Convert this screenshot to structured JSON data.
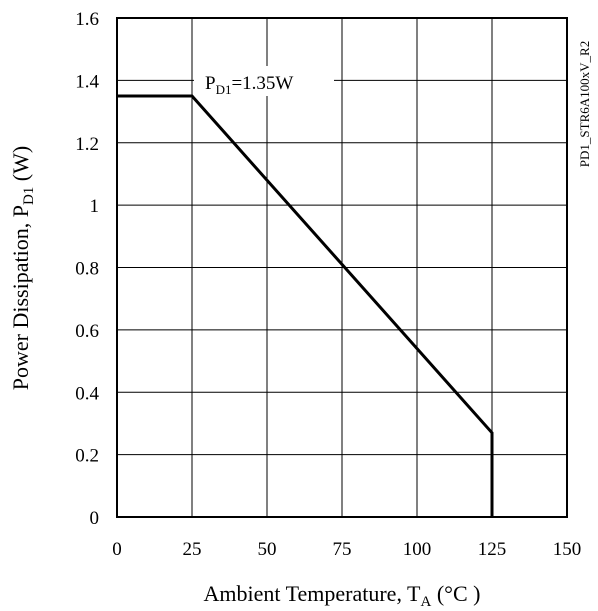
{
  "chart_data": {
    "type": "line",
    "x": [
      0,
      25,
      125,
      125
    ],
    "y": [
      1.35,
      1.35,
      0.27,
      0
    ],
    "xlim": [
      0,
      150
    ],
    "ylim": [
      0,
      1.6
    ],
    "x_ticks": [
      0,
      25,
      50,
      75,
      100,
      125,
      150
    ],
    "y_ticks": [
      0,
      0.2,
      0.4,
      0.6,
      0.8,
      1,
      1.2,
      1.4,
      1.6
    ],
    "x_tick_labels": [
      "0",
      "25",
      "50",
      "75",
      "100",
      "125",
      "150"
    ],
    "y_tick_labels": [
      "0",
      "0.2",
      "0.4",
      "0.6",
      "0.8",
      "1",
      "1.2",
      "1.4",
      "1.6"
    ],
    "grid": true,
    "xlabel": {
      "main": "Ambient Temperature, T",
      "sub": "A",
      "tail": " (°C )"
    },
    "ylabel": {
      "main": "Power Dissipation, P",
      "sub": "D1",
      "tail": " (W)"
    },
    "annotation": {
      "main": "P",
      "sub": "D1",
      "tail": "=1.35W"
    },
    "side_label": "PD1_STR6A100xV_R2",
    "line_color": "#000000"
  }
}
